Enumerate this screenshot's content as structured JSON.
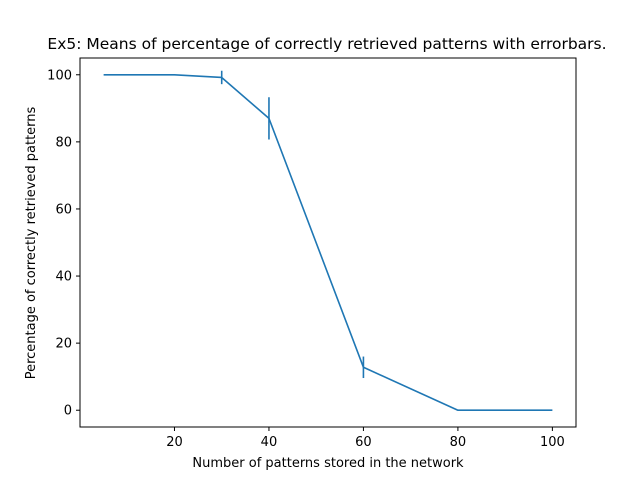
{
  "chart_data": {
    "type": "line",
    "title": "Ex5: Means of percentage of correctly retrieved patterns with errorbars.",
    "xlabel": "Number of patterns stored in the network",
    "ylabel": "Percentage of correctly retrieved patterns",
    "xlim": [
      0,
      105
    ],
    "ylim": [
      -5,
      105
    ],
    "xticks": [
      20,
      40,
      60,
      80,
      100
    ],
    "yticks": [
      0,
      20,
      40,
      60,
      80,
      100
    ],
    "grid": false,
    "series": [
      {
        "x": [
          5,
          20,
          30,
          40,
          60,
          80,
          100
        ],
        "y": [
          100,
          100,
          99.2,
          87,
          12.8,
          0,
          0
        ],
        "yerr": [
          0,
          0,
          2,
          6.3,
          3.2,
          0,
          0
        ],
        "color": "#1f77b4"
      }
    ]
  }
}
